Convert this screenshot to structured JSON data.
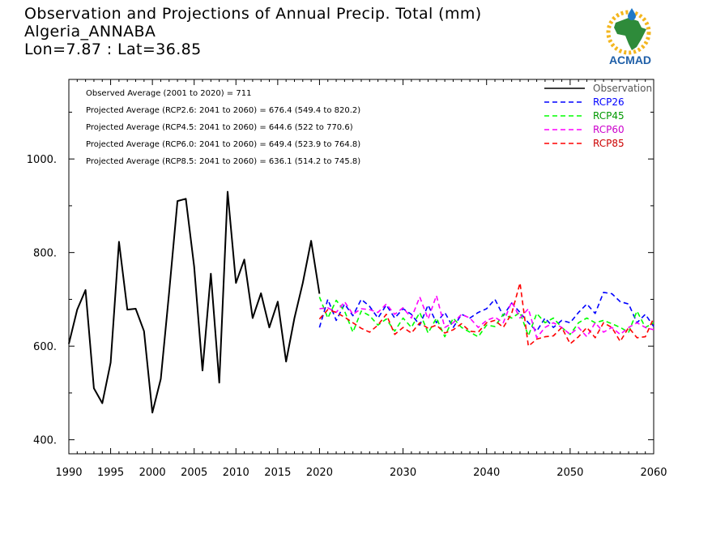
{
  "header": {
    "title": "Observation and Projections of Annual Precip. Total (mm)",
    "location": "Algeria_ANNABA",
    "coords": "Lon=7.87 : Lat=36.85"
  },
  "logo": {
    "text": "ACMAD",
    "icon": "africa-map-rain-icon"
  },
  "stats": [
    "Observed Average (2001 to 2020) = 711",
    "Projected Average (RCP2.6: 2041 to 2060) = 676.4 (549.4 to 820.2)",
    "Projected Average (RCP4.5: 2041 to 2060) = 644.6 (522 to 770.6)",
    "Projected Average (RCP6.0: 2041 to 2060) = 649.4 (523.9 to 764.8)",
    "Projected Average (RCP8.5: 2041 to 2060) = 636.1 (514.2 to 745.8)"
  ],
  "chart_data": {
    "type": "line",
    "xlim": [
      1990,
      2060
    ],
    "ylim": [
      370,
      1170
    ],
    "grid": false,
    "legend": "top-right",
    "x_ticks": [
      1990,
      1995,
      2000,
      2005,
      2010,
      2015,
      2020,
      2030,
      2040,
      2050,
      2060
    ],
    "x_tick_labels": [
      "1990",
      "1995",
      "2000",
      "2005",
      "2010",
      "2015",
      "2020",
      "2030",
      "2040",
      "2050",
      "2060"
    ],
    "y_ticks": [
      400,
      600,
      800,
      1000
    ],
    "y_tick_labels": [
      "400.",
      "600.",
      "800.",
      "1000."
    ],
    "series": [
      {
        "name": "Observation",
        "color": "#000000",
        "dashed": false,
        "x": [
          1990,
          1991,
          1992,
          1993,
          1994,
          1995,
          1996,
          1997,
          1998,
          1999,
          2000,
          2001,
          2002,
          2003,
          2004,
          2005,
          2006,
          2007,
          2008,
          2009,
          2010,
          2011,
          2012,
          2013,
          2014,
          2015,
          2016,
          2017,
          2018,
          2019,
          2020
        ],
        "y": [
          605,
          678,
          720,
          510,
          478,
          565,
          823,
          678,
          680,
          632,
          458,
          530,
          715,
          910,
          915,
          770,
          548,
          755,
          522,
          930,
          735,
          785,
          660,
          713,
          640,
          695,
          567,
          660,
          735,
          825,
          712
        ]
      },
      {
        "name": "RCP26",
        "color": "#0000ff",
        "dashed": true,
        "x": [
          2020,
          2021,
          2022,
          2023,
          2024,
          2025,
          2026,
          2027,
          2028,
          2029,
          2030,
          2031,
          2032,
          2033,
          2034,
          2035,
          2036,
          2037,
          2038,
          2039,
          2040,
          2041,
          2042,
          2043,
          2044,
          2045,
          2046,
          2047,
          2048,
          2049,
          2050,
          2051,
          2052,
          2053,
          2054,
          2055,
          2056,
          2057,
          2058,
          2059,
          2060
        ],
        "y": [
          640,
          700,
          655,
          690,
          665,
          700,
          685,
          660,
          688,
          660,
          680,
          668,
          645,
          688,
          650,
          672,
          640,
          668,
          660,
          672,
          680,
          700,
          665,
          692,
          672,
          650,
          632,
          660,
          640,
          655,
          650,
          672,
          690,
          670,
          715,
          712,
          695,
          690,
          650,
          668,
          642
        ]
      },
      {
        "name": "RCP45",
        "color": "#00ff00",
        "dashed": true,
        "x": [
          2020,
          2021,
          2022,
          2023,
          2024,
          2025,
          2026,
          2027,
          2028,
          2029,
          2030,
          2031,
          2032,
          2033,
          2034,
          2035,
          2036,
          2037,
          2038,
          2039,
          2040,
          2041,
          2042,
          2043,
          2044,
          2045,
          2046,
          2047,
          2048,
          2049,
          2050,
          2051,
          2052,
          2053,
          2054,
          2055,
          2056,
          2057,
          2058,
          2059,
          2060
        ],
        "y": [
          705,
          660,
          698,
          675,
          630,
          675,
          665,
          645,
          658,
          632,
          660,
          640,
          672,
          628,
          660,
          620,
          660,
          640,
          630,
          620,
          645,
          642,
          668,
          660,
          672,
          622,
          670,
          650,
          660,
          640,
          625,
          650,
          660,
          650,
          655,
          648,
          640,
          630,
          675,
          640,
          650
        ]
      },
      {
        "name": "RCP60",
        "color": "#ff00ff",
        "dashed": true,
        "x": [
          2020,
          2021,
          2022,
          2023,
          2024,
          2025,
          2026,
          2027,
          2028,
          2029,
          2030,
          2031,
          2032,
          2033,
          2034,
          2035,
          2036,
          2037,
          2038,
          2039,
          2040,
          2041,
          2042,
          2043,
          2044,
          2045,
          2046,
          2047,
          2048,
          2049,
          2050,
          2051,
          2052,
          2053,
          2054,
          2055,
          2056,
          2057,
          2058,
          2059,
          2060
        ],
        "y": [
          680,
          682,
          672,
          695,
          668,
          680,
          678,
          672,
          690,
          668,
          682,
          660,
          705,
          658,
          708,
          640,
          650,
          668,
          660,
          640,
          655,
          662,
          650,
          695,
          660,
          680,
          618,
          640,
          650,
          640,
          625,
          640,
          620,
          650,
          630,
          640,
          625,
          640,
          650,
          640,
          635
        ]
      },
      {
        "name": "RCP85",
        "color": "#ff0000",
        "dashed": true,
        "x": [
          2020,
          2021,
          2022,
          2023,
          2024,
          2025,
          2026,
          2027,
          2028,
          2029,
          2030,
          2031,
          2032,
          2033,
          2034,
          2035,
          2036,
          2037,
          2038,
          2039,
          2040,
          2041,
          2042,
          2043,
          2044,
          2045,
          2046,
          2047,
          2048,
          2049,
          2050,
          2051,
          2052,
          2053,
          2054,
          2055,
          2056,
          2057,
          2058,
          2059,
          2060
        ],
        "y": [
          658,
          678,
          672,
          662,
          650,
          638,
          630,
          645,
          668,
          625,
          640,
          628,
          650,
          638,
          645,
          628,
          635,
          648,
          632,
          630,
          650,
          655,
          640,
          670,
          735,
          600,
          615,
          620,
          622,
          640,
          605,
          620,
          640,
          618,
          650,
          640,
          610,
          640,
          618,
          620,
          660
        ]
      }
    ]
  }
}
